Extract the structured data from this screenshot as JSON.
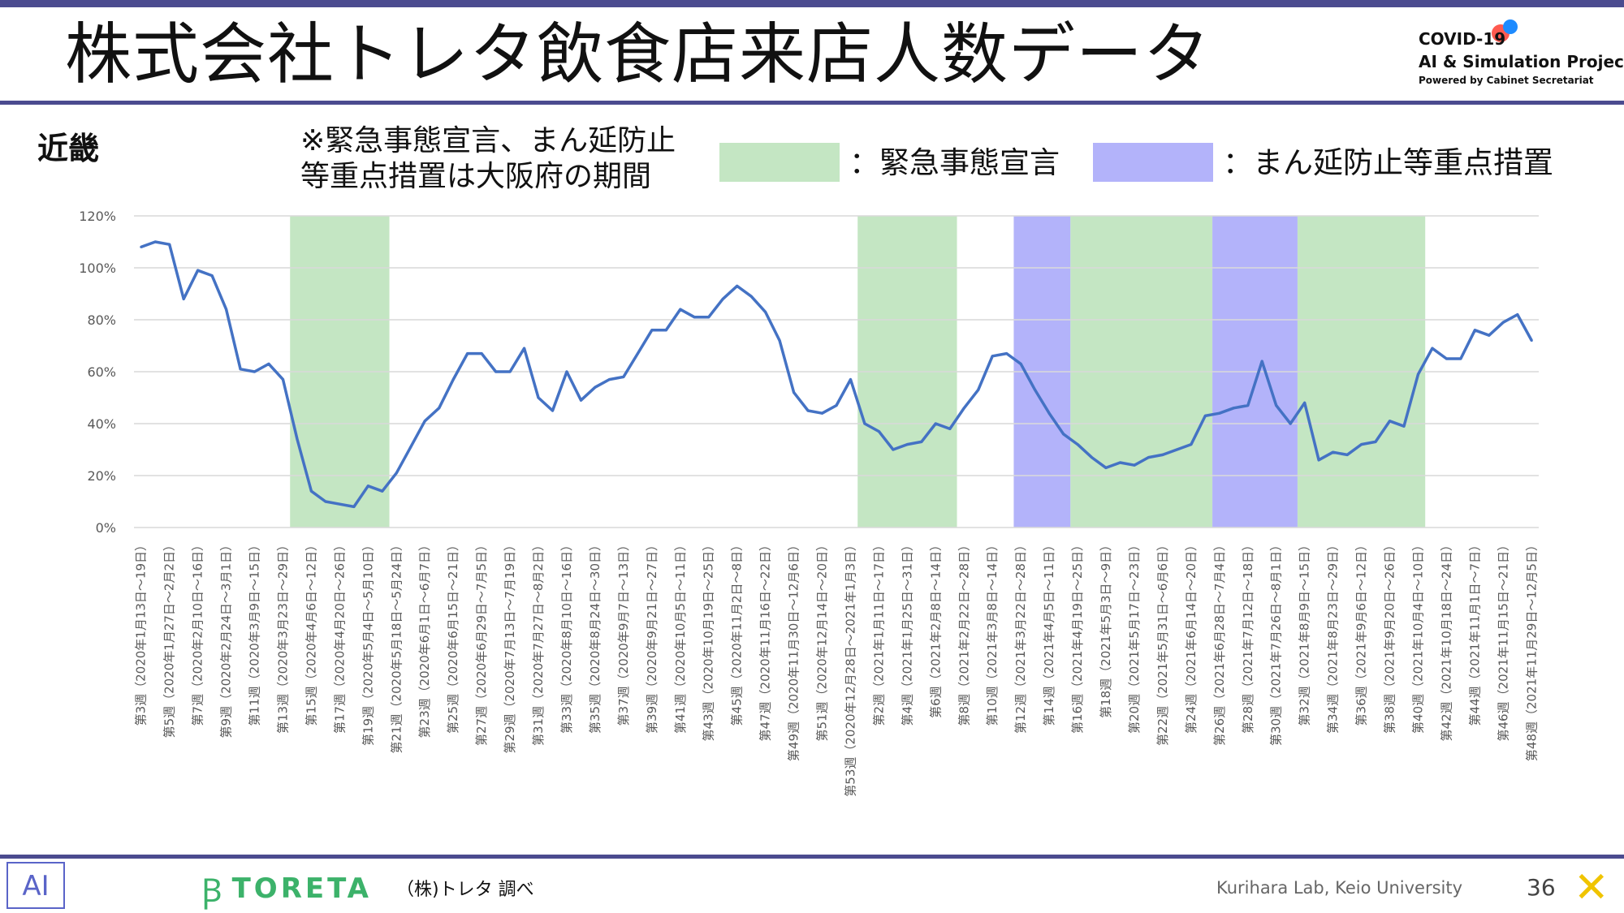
{
  "header": {
    "title": "株式会社トレタ飲食店来店人数データ",
    "logo_line1": "COVID-19",
    "logo_line2": "AI & Simulation Project",
    "logo_line3": "Powered by Cabinet Secretariat"
  },
  "region": "近畿",
  "note_line1": "※緊急事態宣言、まん延防止",
  "note_line2": "等重点措置は大阪府の期間",
  "legend": {
    "green_label": "：緊急事態宣言",
    "blue_label": "：まん延防止等重点措置",
    "green_color": "#c4e6c3",
    "blue_color": "#b3b3fa"
  },
  "footer": {
    "lab_logo": "AI",
    "toreta_mark": "Ꞵ",
    "toreta": "TORETA",
    "source": "（株)トレタ 調べ",
    "lab": "Kurihara Lab, Keio University",
    "page_number": "36",
    "x_logo": "✕"
  },
  "chart_data": {
    "type": "line",
    "title": "",
    "xlabel": "",
    "ylabel": "",
    "ylim": [
      0,
      120
    ],
    "yticks": [
      "0%",
      "20%",
      "40%",
      "60%",
      "80%",
      "100%",
      "120%"
    ],
    "grid": true,
    "line_color": "#4472c4",
    "x_labels": [
      "第3週（2020年1月13日～19日）",
      "第5週（2020年1月27日～2月2日）",
      "第7週（2020年2月10日～16日）",
      "第9週（2020年2月24日～3月1日）",
      "第11週（2020年3月9日～15日）",
      "第13週（2020年3月23日～29日）",
      "第15週（2020年4月6日～12日）",
      "第17週（2020年4月20日～26日）",
      "第19週（2020年5月4日～5月10日）",
      "第21週（2020年5月18日～5月24日）",
      "第23週（2020年6月1日～6月7日）",
      "第25週（2020年6月15日～21日）",
      "第27週（2020年6月29日～7月5日）",
      "第29週（2020年7月13日～7月19日）",
      "第31週（2020年7月27日～8月2日）",
      "第33週（2020年8月10日～16日）",
      "第35週（2020年8月24日～30日）",
      "第37週（2020年9月7日～13日）",
      "第39週（2020年9月21日～27日）",
      "第41週（2020年10月5日～11日）",
      "第43週（2020年10月19日～25日）",
      "第45週（2020年11月2日～8日）",
      "第47週（2020年11月16日～22日）",
      "第49週（2020年11月30日～12月6日）",
      "第51週（2020年12月14日～20日）",
      "第53週（2020年12月28日～2021年1月3日）",
      "第2週（2021年1月11日～17日）",
      "第4週（2021年1月25日～31日）",
      "第6週（2021年2月8日～14日）",
      "第8週（2021年2月22日～28日）",
      "第10週（2021年3月8日～14日）",
      "第12週（2021年3月22日～28日）",
      "第14週（2021年4月5日～11日）",
      "第16週（2021年4月19日～25日）",
      "第18週（2021年5月3日～9日）",
      "第20週（2021年5月17日～23日）",
      "第22週（2021年5月31日～6月6日）",
      "第24週（2021年6月14日～20日）",
      "第26週（2021年6月28日～7月4日）",
      "第28週（2021年7月12日～18日）",
      "第30週（2021年7月26日～8月1日）",
      "第32週（2021年8月9日～15日）",
      "第34週（2021年8月23日～29日）",
      "第36週（2021年9月6日～12日）",
      "第38週（2021年9月20日～26日）",
      "第40週（2021年10月4日～10日）",
      "第42週（2021年10月18日～24日）",
      "第44週（2021年11月1日～7日）",
      "第46週（2021年11月15日～21日）",
      "第48週（2021年11月29日～12月5日）"
    ],
    "values": [
      108,
      110,
      109,
      88,
      99,
      97,
      84,
      61,
      60,
      63,
      57,
      34,
      14,
      10,
      9,
      8,
      16,
      14,
      21,
      31,
      41,
      46,
      57,
      67,
      67,
      60,
      60,
      69,
      50,
      45,
      60,
      49,
      54,
      57,
      58,
      67,
      76,
      76,
      84,
      81,
      81,
      88,
      93,
      89,
      83,
      72,
      52,
      45,
      44,
      47,
      57,
      40,
      37,
      30,
      32,
      33,
      40,
      38,
      46,
      53,
      66,
      67,
      63,
      53,
      44,
      36,
      32,
      27,
      23,
      25,
      24,
      27,
      28,
      30,
      32,
      43,
      44,
      46,
      47,
      64,
      47,
      40,
      48,
      26,
      29,
      28,
      32,
      33,
      41,
      39,
      59,
      69,
      65,
      65,
      76,
      74,
      79,
      82,
      72
    ],
    "shaded_periods": [
      {
        "type": "緊急事態宣言",
        "start_index": 11,
        "end_index": 18
      },
      {
        "type": "緊急事態宣言",
        "start_index": 51,
        "end_index": 58
      },
      {
        "type": "まん延防止等重点措置",
        "start_index": 62,
        "end_index": 66
      },
      {
        "type": "緊急事態宣言",
        "start_index": 66,
        "end_index": 76
      },
      {
        "type": "まん延防止等重点措置",
        "start_index": 76,
        "end_index": 82
      },
      {
        "type": "緊急事態宣言",
        "start_index": 82,
        "end_index": 91
      }
    ]
  }
}
